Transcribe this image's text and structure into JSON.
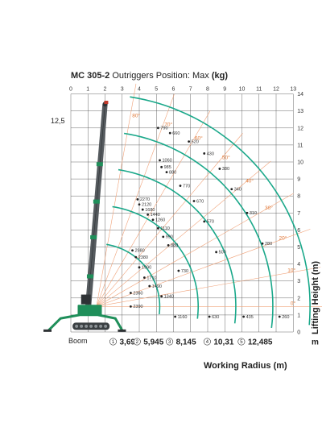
{
  "chart_data": {
    "type": "load-chart",
    "title": {
      "model": "MC 305-2",
      "text": " Outriggers Position: Max ",
      "unit": "(kg)"
    },
    "xlabel": "Working Radius (m)",
    "ylabel": "Lifting Height (m)",
    "xlim": [
      0,
      13
    ],
    "ylim": [
      0,
      14
    ],
    "x_ticks": [
      "0",
      "1",
      "2",
      "3",
      "4",
      "5",
      "6",
      "7",
      "8",
      "9",
      "10",
      "11",
      "12",
      "13"
    ],
    "y_ticks": [
      "0",
      "1",
      "2",
      "3",
      "4",
      "5",
      "6",
      "7",
      "8",
      "9",
      "10",
      "11",
      "12",
      "13",
      "14"
    ],
    "max_height_label": "12,5",
    "boom_label": "Boom",
    "radius_unit": "m",
    "boom_pivot": [
      1.5,
      1.5
    ],
    "boom_lengths": [
      {
        "number": "1",
        "length": 3.695,
        "label": "3,695",
        "tip_angle": 16,
        "at_x": 2.8
      },
      {
        "number": "2",
        "length": 5.945,
        "label": "5,945",
        "tip_angle": 13,
        "at_x": 4.2
      },
      {
        "number": "3",
        "length": 8.145,
        "label": "8,145",
        "tip_angle": 11,
        "at_x": 6.1
      },
      {
        "number": "4",
        "length": 10.31,
        "label": "10,31",
        "tip_angle": 9,
        "at_x": 8.3
      },
      {
        "number": "5",
        "length": 12.485,
        "label": "12,485",
        "tip_angle": 8,
        "at_x": 10.3
      }
    ],
    "angle_lines": [
      {
        "deg": 0,
        "label": "0°"
      },
      {
        "deg": 10,
        "label": "10°"
      },
      {
        "deg": 20,
        "label": "20°"
      },
      {
        "deg": 30,
        "label": "30°"
      },
      {
        "deg": 40,
        "label": "40°"
      },
      {
        "deg": 50,
        "label": "50°"
      },
      {
        "deg": 60,
        "label": "60°"
      },
      {
        "deg": 70,
        "label": "70°"
      },
      {
        "deg": 80,
        "label": "80°"
      }
    ],
    "capacities": [
      {
        "x": 3.5,
        "y": 2.3,
        "label": "2360"
      },
      {
        "x": 3.5,
        "y": 1.5,
        "label": "2390"
      },
      {
        "x": 3.6,
        "y": 4.8,
        "label": "2980"
      },
      {
        "x": 3.8,
        "y": 4.4,
        "label": "2380"
      },
      {
        "x": 4.0,
        "y": 3.8,
        "label": "1990"
      },
      {
        "x": 4.3,
        "y": 3.2,
        "label": "1710"
      },
      {
        "x": 4.6,
        "y": 2.7,
        "label": "1490"
      },
      {
        "x": 5.3,
        "y": 2.1,
        "label": "1340"
      },
      {
        "x": 6.1,
        "y": 0.9,
        "label": "1160"
      },
      {
        "x": 3.9,
        "y": 7.8,
        "label": "2270"
      },
      {
        "x": 4.0,
        "y": 7.5,
        "label": "2120"
      },
      {
        "x": 4.2,
        "y": 7.2,
        "label": "1680"
      },
      {
        "x": 4.5,
        "y": 6.9,
        "label": "1440"
      },
      {
        "x": 4.8,
        "y": 6.6,
        "label": "1260"
      },
      {
        "x": 5.1,
        "y": 6.1,
        "label": "1110"
      },
      {
        "x": 5.4,
        "y": 5.6,
        "label": "990"
      },
      {
        "x": 5.7,
        "y": 5.1,
        "label": "880"
      },
      {
        "x": 6.3,
        "y": 3.6,
        "label": "730"
      },
      {
        "x": 8.1,
        "y": 0.9,
        "label": "630"
      },
      {
        "x": 5.2,
        "y": 10.1,
        "label": "1060"
      },
      {
        "x": 5.3,
        "y": 9.7,
        "label": "985"
      },
      {
        "x": 5.6,
        "y": 9.4,
        "label": "880"
      },
      {
        "x": 6.4,
        "y": 8.6,
        "label": "770"
      },
      {
        "x": 7.2,
        "y": 7.7,
        "label": "670"
      },
      {
        "x": 7.8,
        "y": 6.5,
        "label": "570"
      },
      {
        "x": 8.5,
        "y": 4.7,
        "label": "500"
      },
      {
        "x": 10.1,
        "y": 0.9,
        "label": "435"
      },
      {
        "x": 5.1,
        "y": 12.0,
        "label": "790"
      },
      {
        "x": 5.8,
        "y": 11.7,
        "label": "660"
      },
      {
        "x": 6.9,
        "y": 11.2,
        "label": "520"
      },
      {
        "x": 7.8,
        "y": 10.5,
        "label": "430"
      },
      {
        "x": 8.7,
        "y": 9.6,
        "label": "380"
      },
      {
        "x": 9.4,
        "y": 8.4,
        "label": "340"
      },
      {
        "x": 10.3,
        "y": 7.0,
        "label": "310"
      },
      {
        "x": 11.2,
        "y": 5.2,
        "label": "280"
      },
      {
        "x": 12.2,
        "y": 0.9,
        "label": "260"
      }
    ],
    "colors": {
      "curve": "#1aa88a",
      "angle_line": "#f0a37a",
      "grid": "#444444",
      "boom": "#555a5e",
      "crane_body": "#1f8f5a",
      "angle_text": "#e07a3a"
    }
  }
}
